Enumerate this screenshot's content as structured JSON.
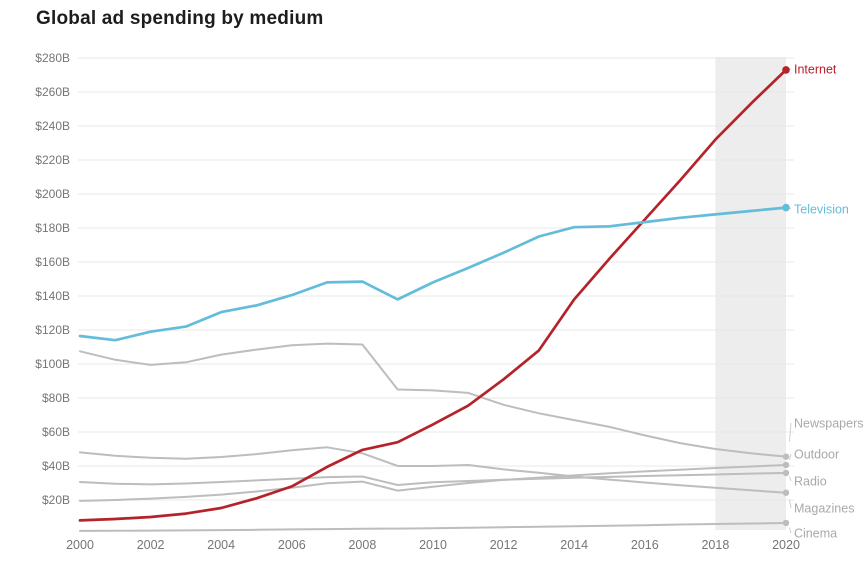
{
  "title": "Global ad spending by medium",
  "colors": {
    "internet": "#b5232a",
    "television": "#64bcdb",
    "gray_line": "#bdbdbd",
    "grid": "#e8e8e8",
    "axis_text": "#767676",
    "forecast_band": "#ededed",
    "gray_label": "#a9a9a9",
    "title_text": "#1d1d1d",
    "background": "#ffffff"
  },
  "chart_data": {
    "type": "line",
    "title": "Global ad spending by medium",
    "xlabel": "",
    "ylabel": "",
    "xlim": [
      2000,
      2020
    ],
    "ylim": [
      0,
      290
    ],
    "grid": "horizontal",
    "legend_position": "right-edge-labels",
    "forecast_shading": {
      "from_x": 2018,
      "to_x": 2020
    },
    "x": [
      2000,
      2001,
      2002,
      2003,
      2004,
      2005,
      2006,
      2007,
      2008,
      2009,
      2010,
      2011,
      2012,
      2013,
      2014,
      2015,
      2016,
      2017,
      2018,
      2019,
      2020
    ],
    "x_tick_labels": [
      "2000",
      "2002",
      "2004",
      "2006",
      "2008",
      "2010",
      "2012",
      "2014",
      "2016",
      "2018",
      "2020"
    ],
    "y_ticks": [
      20,
      40,
      60,
      80,
      100,
      120,
      140,
      160,
      180,
      200,
      220,
      240,
      260,
      280
    ],
    "y_tick_labels": [
      "$20B",
      "$40B",
      "$60B",
      "$80B",
      "$100B",
      "$120B",
      "$140B",
      "$160B",
      "$180B",
      "$200B",
      "$220B",
      "$240B",
      "$260B",
      "$280B"
    ],
    "series": [
      {
        "name": "Internet",
        "color": "#b5232a",
        "emphasis": true,
        "values": [
          8,
          8.8,
          10,
          12,
          15.3,
          21,
          28,
          39.5,
          49.5,
          54,
          64.5,
          75.5,
          91,
          108,
          138,
          162,
          185,
          208,
          232,
          253,
          273
        ]
      },
      {
        "name": "Television",
        "color": "#64bcdb",
        "emphasis": true,
        "values": [
          116.5,
          114,
          119,
          122,
          130.5,
          134.5,
          140.5,
          148,
          148.5,
          138,
          148,
          156.5,
          165.5,
          175,
          180.5,
          181,
          183.5,
          186,
          188,
          190,
          192
        ]
      },
      {
        "name": "Newspapers",
        "color": "#bdbdbd",
        "emphasis": false,
        "values": [
          107.5,
          102.5,
          99.5,
          101,
          105.5,
          108.5,
          111,
          112,
          111.5,
          85,
          84.5,
          83,
          76,
          71,
          67,
          63,
          58,
          53.5,
          50,
          47.5,
          45.5
        ]
      },
      {
        "name": "Outdoor",
        "color": "#bdbdbd",
        "emphasis": false,
        "values": [
          19.5,
          20,
          20.8,
          21.8,
          23.2,
          25,
          27.2,
          29.8,
          30.8,
          25.5,
          27.8,
          30,
          31.8,
          33.2,
          34.5,
          35.7,
          36.8,
          37.8,
          38.8,
          39.7,
          40.6
        ]
      },
      {
        "name": "Radio",
        "color": "#bdbdbd",
        "emphasis": false,
        "values": [
          30.6,
          29.6,
          29.2,
          29.7,
          30.6,
          31.5,
          32.5,
          33.5,
          33.8,
          28.8,
          30.4,
          31.2,
          31.9,
          32.5,
          33.1,
          33.6,
          34.1,
          34.6,
          35,
          35.5,
          35.9
        ]
      },
      {
        "name": "Magazines",
        "color": "#bdbdbd",
        "emphasis": false,
        "values": [
          48,
          46,
          44.8,
          44.3,
          45.3,
          47,
          49.3,
          51,
          47.5,
          40,
          40,
          40.6,
          38,
          36,
          33.8,
          32,
          30.3,
          28.7,
          27.2,
          25.7,
          24.3
        ]
      },
      {
        "name": "Cinema",
        "color": "#bdbdbd",
        "emphasis": false,
        "values": [
          1.8,
          1.9,
          2,
          2.1,
          2.3,
          2.5,
          2.7,
          2.9,
          3.1,
          3.2,
          3.4,
          3.7,
          4,
          4.3,
          4.6,
          4.9,
          5.2,
          5.6,
          5.9,
          6.2,
          6.5
        ]
      }
    ]
  }
}
